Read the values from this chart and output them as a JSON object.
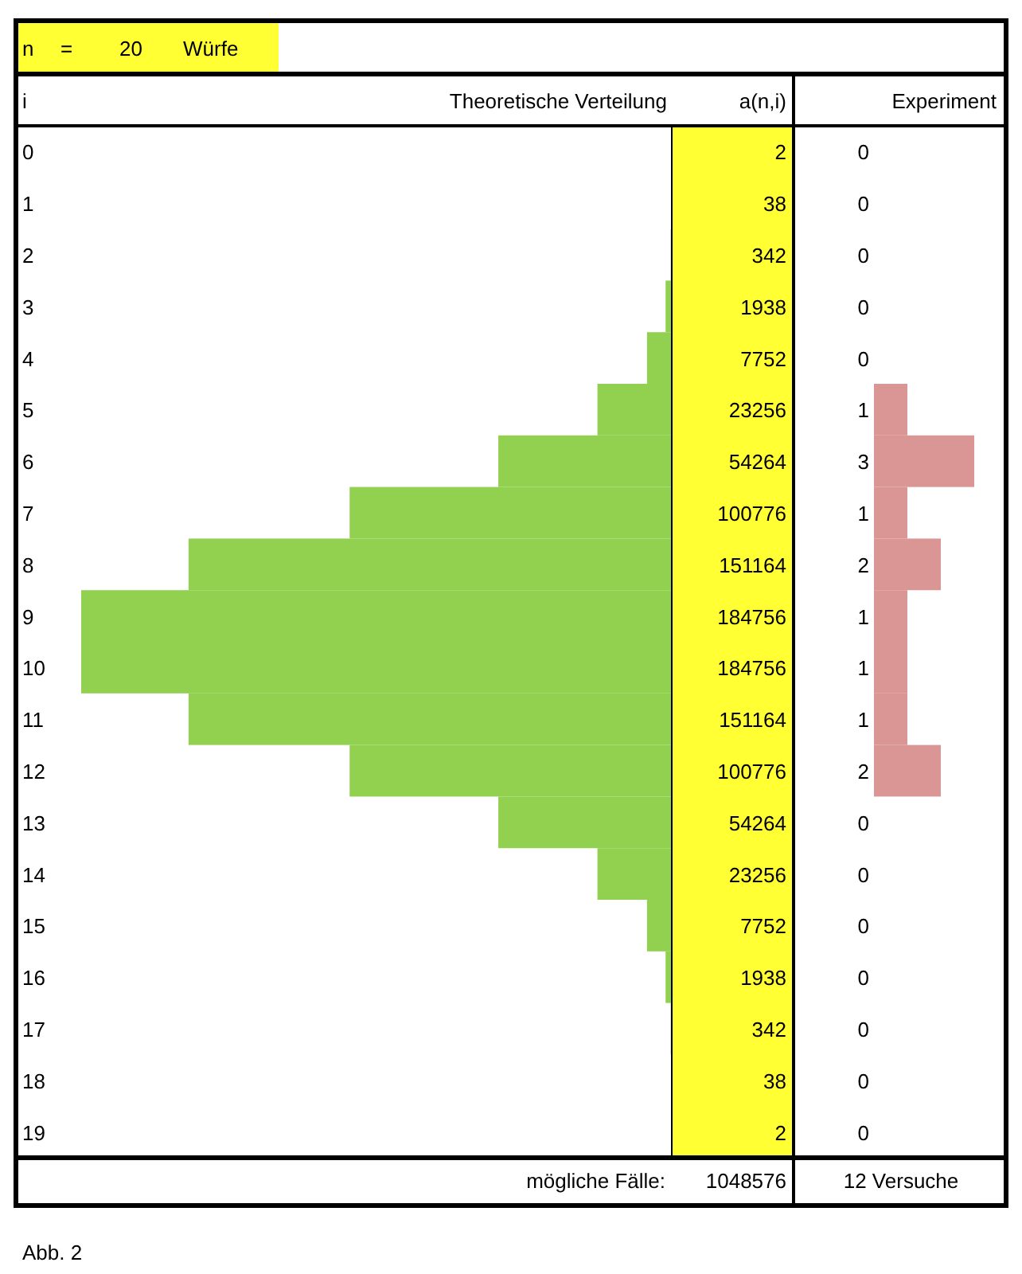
{
  "chart_data": [
    {
      "type": "bar",
      "orientation": "horizontal",
      "title": "Theoretische Verteilung",
      "ylabel": "i",
      "tick_labels": "y",
      "data_labels": true,
      "color": "#92d050",
      "categories": [
        "0",
        "1",
        "2",
        "3",
        "4",
        "5",
        "6",
        "7",
        "8",
        "9",
        "10",
        "11",
        "12",
        "13",
        "14",
        "15",
        "16",
        "17",
        "18",
        "19"
      ],
      "values": [
        2,
        38,
        342,
        1938,
        7752,
        23256,
        54264,
        100776,
        151164,
        184756,
        184756,
        151164,
        100776,
        54264,
        23256,
        7752,
        1938,
        342,
        38,
        2
      ],
      "annotations": [
        "n = 20 Würfe",
        "a(n,i)",
        "mögliche Fälle:",
        "1048576",
        "Abb. 2"
      ]
    },
    {
      "type": "bar",
      "orientation": "horizontal",
      "title": "Experiment",
      "tick_labels": false,
      "data_labels": true,
      "color": "#d99694",
      "categories": [
        null,
        null,
        null,
        null,
        null,
        null,
        null,
        null,
        null,
        null,
        null,
        null,
        null,
        null,
        null,
        null,
        null,
        null,
        null,
        null
      ],
      "values": [
        0,
        0,
        0,
        0,
        0,
        1,
        3,
        1,
        2,
        1,
        1,
        1,
        2,
        0,
        0,
        0,
        0,
        0,
        0,
        0
      ],
      "annotations": [
        "12 Versuche"
      ]
    }
  ]
}
